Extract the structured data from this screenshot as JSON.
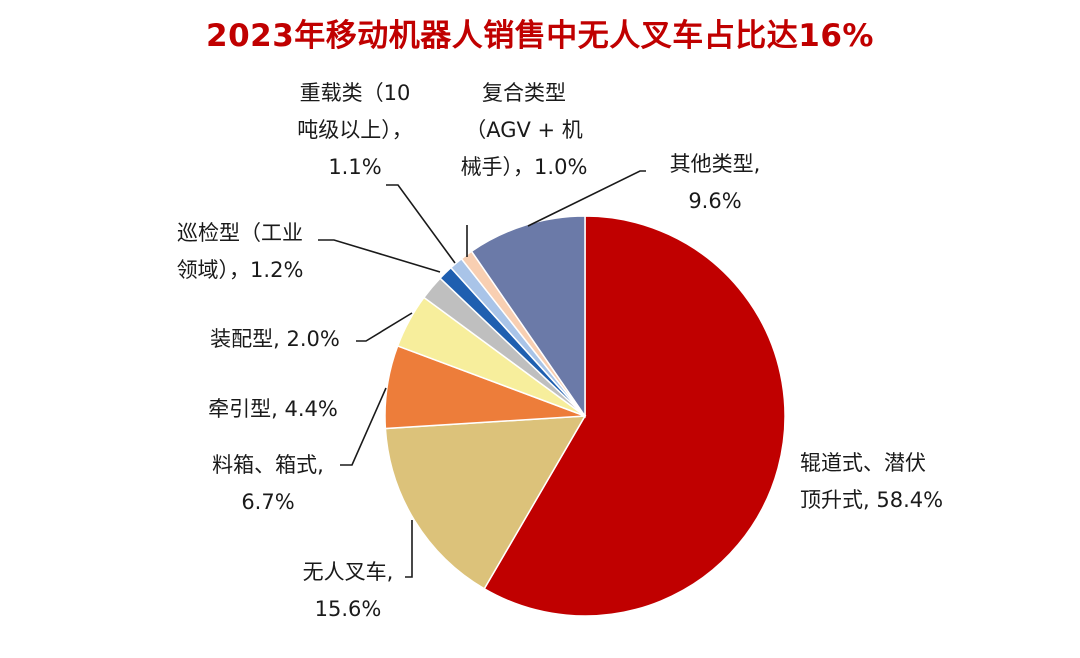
{
  "title": "2023年移动机器人销售中无人叉车占比达16%",
  "chart_data": {
    "type": "pie",
    "title": "2023年移动机器人销售中无人叉车占比达16%",
    "unit": "%",
    "slices": [
      {
        "name": "辊道式、潜伏顶升式",
        "value": 58.4,
        "color": "#c00000",
        "label_lines": [
          "辊道式、潜伏",
          "顶升式, 58.4%"
        ]
      },
      {
        "name": "无人叉车",
        "value": 15.6,
        "color": "#dcc27a",
        "label_lines": [
          "无人叉车,",
          "15.6%"
        ]
      },
      {
        "name": "料箱、箱式",
        "value": 6.7,
        "color": "#ed7d3a",
        "label_lines": [
          "料箱、箱式,",
          "6.7%"
        ]
      },
      {
        "name": "牵引型",
        "value": 4.4,
        "color": "#f7ee9c",
        "label_lines": [
          "牵引型, 4.4%"
        ]
      },
      {
        "name": "装配型",
        "value": 2.0,
        "color": "#bfbfbf",
        "label_lines": [
          "装配型, 2.0%"
        ]
      },
      {
        "name": "巡检型（工业领域）",
        "value": 1.2,
        "color": "#1f5fb0",
        "label_lines": [
          "巡检型（工业",
          "领域），1.2%"
        ]
      },
      {
        "name": "重载类（10吨级以上）",
        "value": 1.1,
        "color": "#a9c4e8",
        "label_lines": [
          "重载类（10",
          "吨级以上），",
          "1.1%"
        ]
      },
      {
        "name": "复合类型（AGV + 机械手）",
        "value": 1.0,
        "color": "#f8cfb2",
        "label_lines": [
          "复合类型",
          "（AGV + 机",
          "械手），1.0%"
        ]
      },
      {
        "name": "其他类型",
        "value": 9.6,
        "color": "#6b7aa8",
        "label_lines": [
          "其他类型,",
          "9.6%"
        ]
      }
    ]
  }
}
